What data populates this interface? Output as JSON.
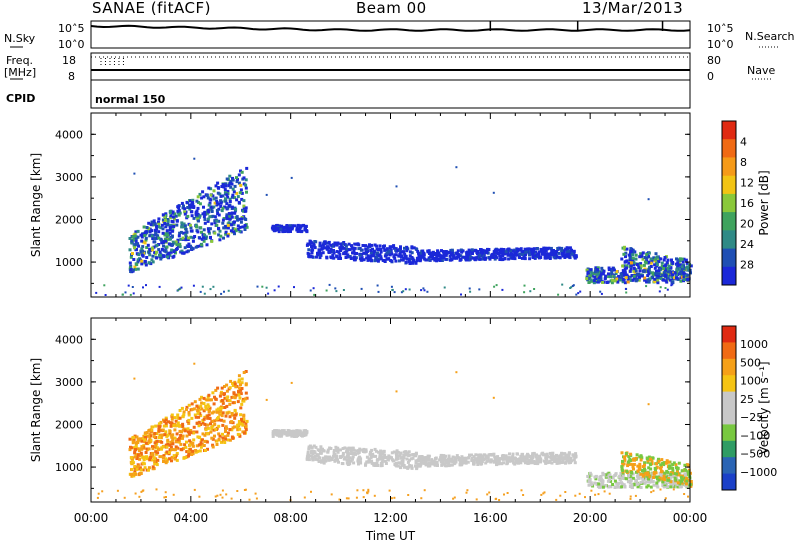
{
  "header": {
    "station": "SANAE (fitACF)",
    "beam": "Beam 00",
    "date": "13/Mar/2013"
  },
  "strip": {
    "nsky_label": "N.Sky",
    "freq_label": "Freq.",
    "freq_unit": "[MHz]",
    "cpid_label": "CPID",
    "nsearch_label": "N.Search",
    "nave_label": "Nave",
    "left_ticks_top": [
      "10^5",
      "10^0"
    ],
    "right_ticks_top": [
      "10^5",
      "10^0"
    ],
    "left_ticks_freq": [
      "18",
      "8"
    ],
    "right_ticks_nave": [
      "80",
      "0"
    ],
    "cpid_value": "normal 150"
  },
  "chart_data": [
    {
      "type": "heatmap",
      "name": "power",
      "ylabel": "Slant Range [km]",
      "y_ticks": [
        "1000",
        "2000",
        "3000",
        "4000"
      ],
      "ylim": [
        180,
        4500
      ],
      "xlim": [
        0,
        24
      ],
      "colorbar": {
        "label": "Power [dB]",
        "ticks": [
          "4",
          "8",
          "12",
          "16",
          "20",
          "24",
          "28"
        ],
        "colors": [
          "#1b28d8",
          "#1f4fb4",
          "#2f8a86",
          "#3fa35e",
          "#8ac83a",
          "#f2c414",
          "#f59a18",
          "#f06a14",
          "#e02a12"
        ]
      },
      "regions": [
        {
          "t0": 1.5,
          "t1": 6.2,
          "r0": 780,
          "r1": 1700,
          "slope": 250,
          "level": "high"
        },
        {
          "t0": 7.2,
          "t1": 8.6,
          "r0": 1750,
          "r1": 1900,
          "slope": 0,
          "level": "low"
        },
        {
          "t0": 8.6,
          "t1": 13.0,
          "r0": 1150,
          "r1": 1550,
          "slope": -40,
          "level": "low"
        },
        {
          "t0": 13.0,
          "t1": 19.4,
          "r0": 1050,
          "r1": 1300,
          "slope": 20,
          "level": "low"
        },
        {
          "t0": 19.8,
          "t1": 24.0,
          "r0": 550,
          "r1": 900,
          "slope": 0,
          "level": "mid"
        },
        {
          "t0": 21.2,
          "t1": 24.0,
          "r0": 900,
          "r1": 1400,
          "slope": -80,
          "level": "mid"
        }
      ]
    },
    {
      "type": "heatmap",
      "name": "velocity",
      "ylabel": "Slant Range [km]",
      "y_ticks": [
        "1000",
        "2000",
        "3000",
        "4000"
      ],
      "ylim": [
        180,
        4500
      ],
      "xlim": [
        0,
        24
      ],
      "x_ticks": [
        "00:00",
        "04:00",
        "08:00",
        "12:00",
        "16:00",
        "20:00",
        "00:00"
      ],
      "xlabel": "Time UT",
      "colorbar": {
        "label": "Velocity [m s⁻¹]",
        "ticks": [
          "1000",
          "500",
          "100",
          "25",
          "−25",
          "−100",
          "−500",
          "−1000"
        ],
        "colors": [
          "#1b40c8",
          "#2a64b4",
          "#2f9c64",
          "#78c840",
          "#c8c8c8",
          "#c8c8c8",
          "#f5c414",
          "#f5a018",
          "#f06a14",
          "#e02a12"
        ]
      }
    }
  ],
  "colors": {
    "frame": "#000000",
    "ground": "#f5a020"
  }
}
